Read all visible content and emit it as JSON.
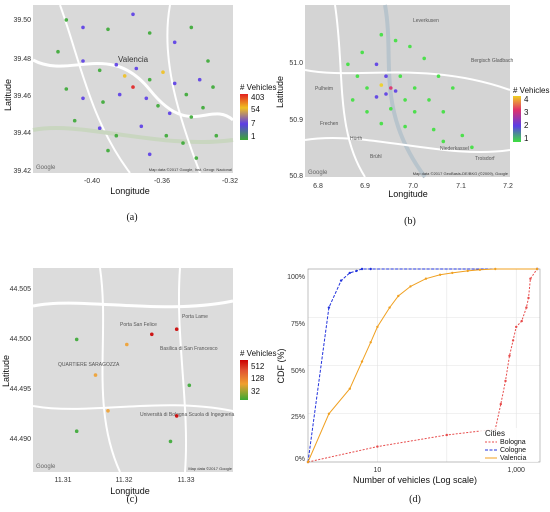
{
  "panels": [
    {
      "caption": "(a)",
      "xlabel": "Longitude",
      "ylabel": "Latitude",
      "xticks": [
        "-0.40",
        "-0.36",
        "-0.32"
      ],
      "yticks": [
        "39.50",
        "39.48",
        "39.46",
        "39.44",
        "39.42"
      ],
      "legend_title": "# Vehicles",
      "legend_labels": [
        "403",
        "54",
        "7",
        "1"
      ],
      "map_labels": [
        "Valencia"
      ],
      "attribution": "Map data ©2017 Google, Inst. Geogr. Nacional",
      "google": "Google"
    },
    {
      "caption": "(b)",
      "xlabel": "Longitude",
      "ylabel": "Latitude",
      "xticks": [
        "6.8",
        "6.9",
        "7.0",
        "7.1",
        "7.2"
      ],
      "yticks": [
        "51.0",
        "50.9",
        "50.8"
      ],
      "legend_title": "# Vehicles",
      "legend_labels": [
        "4",
        "3",
        "2",
        "1"
      ],
      "map_labels": [
        "Leverkusen",
        "Bergisch Gladbach",
        "Pulheim",
        "Frechen",
        "Hürth",
        "Brühl",
        "Niederkassel",
        "Troisdorf"
      ],
      "attribution": "Map data ©2017 GeoBasis-DE/BKG (©2009), Google",
      "google": "Google"
    },
    {
      "caption": "(c)",
      "xlabel": "Longitude",
      "ylabel": "Latitude",
      "xticks": [
        "11.31",
        "11.32",
        "11.33"
      ],
      "yticks": [
        "44.505",
        "44.500",
        "44.495",
        "44.490"
      ],
      "legend_title": "# Vehicles",
      "legend_labels": [
        "512",
        "128",
        "32"
      ],
      "map_labels": [
        "QUARTIERE SARAGOZZA",
        "Porta San Felice",
        "Porta Lame",
        "Basilica di San Francesco",
        "Università di Bologna Scuola di Ingegneria"
      ],
      "attribution": "Map data ©2017 Google",
      "google": "Google"
    },
    {
      "caption": "(d)",
      "xlabel": "Number of vehicles (Log scale)",
      "ylabel": "CDF (%)",
      "yticks": [
        "0%",
        "25%",
        "50%",
        "75%",
        "100%"
      ],
      "xticks": [
        "10",
        "1,000"
      ],
      "legend_title": "Cities",
      "legend_entries": [
        "Bologna",
        "Cologne",
        "Valencia"
      ]
    }
  ],
  "chart_data": [
    {
      "type": "scatter",
      "title": "",
      "x_range": [
        -0.44,
        -0.32
      ],
      "y_range": [
        39.42,
        39.51
      ],
      "color_scale": [
        "#3aa834",
        "#5a3ce6",
        "#f0c020",
        "#e22020"
      ],
      "points": [
        {
          "x": -0.42,
          "y": 39.502,
          "v": 1
        },
        {
          "x": -0.41,
          "y": 39.498,
          "v": 7
        },
        {
          "x": -0.395,
          "y": 39.497,
          "v": 1
        },
        {
          "x": -0.38,
          "y": 39.505,
          "v": 7
        },
        {
          "x": -0.37,
          "y": 39.495,
          "v": 1
        },
        {
          "x": -0.355,
          "y": 39.49,
          "v": 7
        },
        {
          "x": -0.345,
          "y": 39.498,
          "v": 1
        },
        {
          "x": -0.335,
          "y": 39.48,
          "v": 1
        },
        {
          "x": -0.425,
          "y": 39.485,
          "v": 1
        },
        {
          "x": -0.41,
          "y": 39.48,
          "v": 7
        },
        {
          "x": -0.4,
          "y": 39.475,
          "v": 1
        },
        {
          "x": -0.39,
          "y": 39.478,
          "v": 7
        },
        {
          "x": -0.385,
          "y": 39.472,
          "v": 54
        },
        {
          "x": -0.378,
          "y": 39.476,
          "v": 7
        },
        {
          "x": -0.37,
          "y": 39.47,
          "v": 1
        },
        {
          "x": -0.362,
          "y": 39.474,
          "v": 54
        },
        {
          "x": -0.355,
          "y": 39.468,
          "v": 7
        },
        {
          "x": -0.348,
          "y": 39.462,
          "v": 1
        },
        {
          "x": -0.34,
          "y": 39.47,
          "v": 7
        },
        {
          "x": -0.332,
          "y": 39.466,
          "v": 1
        },
        {
          "x": -0.42,
          "y": 39.465,
          "v": 1
        },
        {
          "x": -0.41,
          "y": 39.46,
          "v": 7
        },
        {
          "x": -0.398,
          "y": 39.458,
          "v": 1
        },
        {
          "x": -0.388,
          "y": 39.462,
          "v": 7
        },
        {
          "x": -0.38,
          "y": 39.466,
          "v": 403
        },
        {
          "x": -0.372,
          "y": 39.46,
          "v": 7
        },
        {
          "x": -0.365,
          "y": 39.456,
          "v": 1
        },
        {
          "x": -0.358,
          "y": 39.452,
          "v": 7
        },
        {
          "x": -0.345,
          "y": 39.45,
          "v": 1
        },
        {
          "x": -0.338,
          "y": 39.455,
          "v": 1
        },
        {
          "x": -0.415,
          "y": 39.448,
          "v": 1
        },
        {
          "x": -0.4,
          "y": 39.444,
          "v": 7
        },
        {
          "x": -0.39,
          "y": 39.44,
          "v": 1
        },
        {
          "x": -0.375,
          "y": 39.445,
          "v": 7
        },
        {
          "x": -0.36,
          "y": 39.44,
          "v": 1
        },
        {
          "x": -0.35,
          "y": 39.436,
          "v": 1
        },
        {
          "x": -0.395,
          "y": 39.432,
          "v": 1
        },
        {
          "x": -0.37,
          "y": 39.43,
          "v": 7
        },
        {
          "x": -0.342,
          "y": 39.428,
          "v": 1
        },
        {
          "x": -0.33,
          "y": 39.44,
          "v": 1
        }
      ]
    },
    {
      "type": "scatter",
      "title": "",
      "x_range": [
        6.77,
        7.2
      ],
      "y_range": [
        50.79,
        51.08
      ],
      "color_scale": [
        "#3ee03e",
        "#5a3ce6",
        "#e0306a",
        "#f0d020"
      ],
      "points": [
        {
          "x": 6.93,
          "y": 51.03,
          "v": 1
        },
        {
          "x": 6.96,
          "y": 51.02,
          "v": 1
        },
        {
          "x": 6.89,
          "y": 51.0,
          "v": 1
        },
        {
          "x": 6.99,
          "y": 51.01,
          "v": 1
        },
        {
          "x": 6.86,
          "y": 50.98,
          "v": 1
        },
        {
          "x": 6.92,
          "y": 50.98,
          "v": 2
        },
        {
          "x": 7.02,
          "y": 50.99,
          "v": 1
        },
        {
          "x": 6.88,
          "y": 50.96,
          "v": 1
        },
        {
          "x": 6.94,
          "y": 50.96,
          "v": 2
        },
        {
          "x": 6.97,
          "y": 50.96,
          "v": 1
        },
        {
          "x": 7.05,
          "y": 50.96,
          "v": 1
        },
        {
          "x": 6.9,
          "y": 50.94,
          "v": 1
        },
        {
          "x": 6.93,
          "y": 50.945,
          "v": 4
        },
        {
          "x": 6.95,
          "y": 50.94,
          "v": 3
        },
        {
          "x": 6.96,
          "y": 50.935,
          "v": 2
        },
        {
          "x": 7.0,
          "y": 50.94,
          "v": 1
        },
        {
          "x": 7.08,
          "y": 50.94,
          "v": 1
        },
        {
          "x": 6.87,
          "y": 50.92,
          "v": 1
        },
        {
          "x": 6.92,
          "y": 50.925,
          "v": 2
        },
        {
          "x": 6.94,
          "y": 50.93,
          "v": 2
        },
        {
          "x": 6.98,
          "y": 50.92,
          "v": 1
        },
        {
          "x": 7.03,
          "y": 50.92,
          "v": 1
        },
        {
          "x": 6.9,
          "y": 50.9,
          "v": 1
        },
        {
          "x": 6.95,
          "y": 50.905,
          "v": 1
        },
        {
          "x": 7.0,
          "y": 50.9,
          "v": 1
        },
        {
          "x": 7.06,
          "y": 50.9,
          "v": 1
        },
        {
          "x": 6.93,
          "y": 50.88,
          "v": 1
        },
        {
          "x": 6.98,
          "y": 50.875,
          "v": 1
        },
        {
          "x": 7.04,
          "y": 50.87,
          "v": 1
        },
        {
          "x": 7.1,
          "y": 50.86,
          "v": 1
        },
        {
          "x": 7.06,
          "y": 50.85,
          "v": 1
        },
        {
          "x": 7.12,
          "y": 50.84,
          "v": 1
        }
      ]
    },
    {
      "type": "scatter",
      "title": "",
      "x_range": [
        11.305,
        11.337
      ],
      "y_range": [
        44.487,
        44.507
      ],
      "color_scale": [
        "#3aa834",
        "#f0a030",
        "#e05030",
        "#cc0000"
      ],
      "points": [
        {
          "x": 11.312,
          "y": 44.5,
          "v": 32
        },
        {
          "x": 11.315,
          "y": 44.4965,
          "v": 128
        },
        {
          "x": 11.32,
          "y": 44.4995,
          "v": 128
        },
        {
          "x": 11.324,
          "y": 44.5005,
          "v": 512
        },
        {
          "x": 11.328,
          "y": 44.501,
          "v": 512
        },
        {
          "x": 11.33,
          "y": 44.4955,
          "v": 32
        },
        {
          "x": 11.317,
          "y": 44.493,
          "v": 128
        },
        {
          "x": 11.312,
          "y": 44.491,
          "v": 32
        },
        {
          "x": 11.328,
          "y": 44.4925,
          "v": 512
        },
        {
          "x": 11.327,
          "y": 44.49,
          "v": 32
        }
      ]
    },
    {
      "type": "line",
      "title": "",
      "xlabel": "Number of vehicles (Log scale)",
      "ylabel": "CDF (%)",
      "x_scale": "log",
      "x_range": [
        1,
        2200
      ],
      "y_range": [
        0,
        100
      ],
      "legend_placement": "bottom-right",
      "series": [
        {
          "name": "Bologna",
          "color": "#e74c4c",
          "x": [
            1,
            10,
            100,
            500,
            600,
            700,
            800,
            900,
            1000,
            1200,
            1400,
            1500,
            1600,
            2000
          ],
          "y": [
            0,
            8,
            14,
            17,
            30,
            42,
            55,
            63,
            70,
            73,
            80,
            85,
            95,
            100
          ]
        },
        {
          "name": "Cologne",
          "color": "#2233dd",
          "x": [
            1,
            2,
            3,
            4,
            5,
            6,
            8,
            2000
          ],
          "y": [
            0,
            80,
            94,
            98,
            99,
            100,
            100,
            100
          ]
        },
        {
          "name": "Valencia",
          "color": "#f0a020",
          "x": [
            1,
            2,
            4,
            6,
            8,
            10,
            15,
            20,
            30,
            50,
            80,
            120,
            200,
            300,
            500,
            2000
          ],
          "y": [
            0,
            25,
            38,
            52,
            62,
            70,
            80,
            86,
            91,
            95,
            97,
            98,
            99,
            99.6,
            100,
            100
          ]
        }
      ]
    }
  ]
}
